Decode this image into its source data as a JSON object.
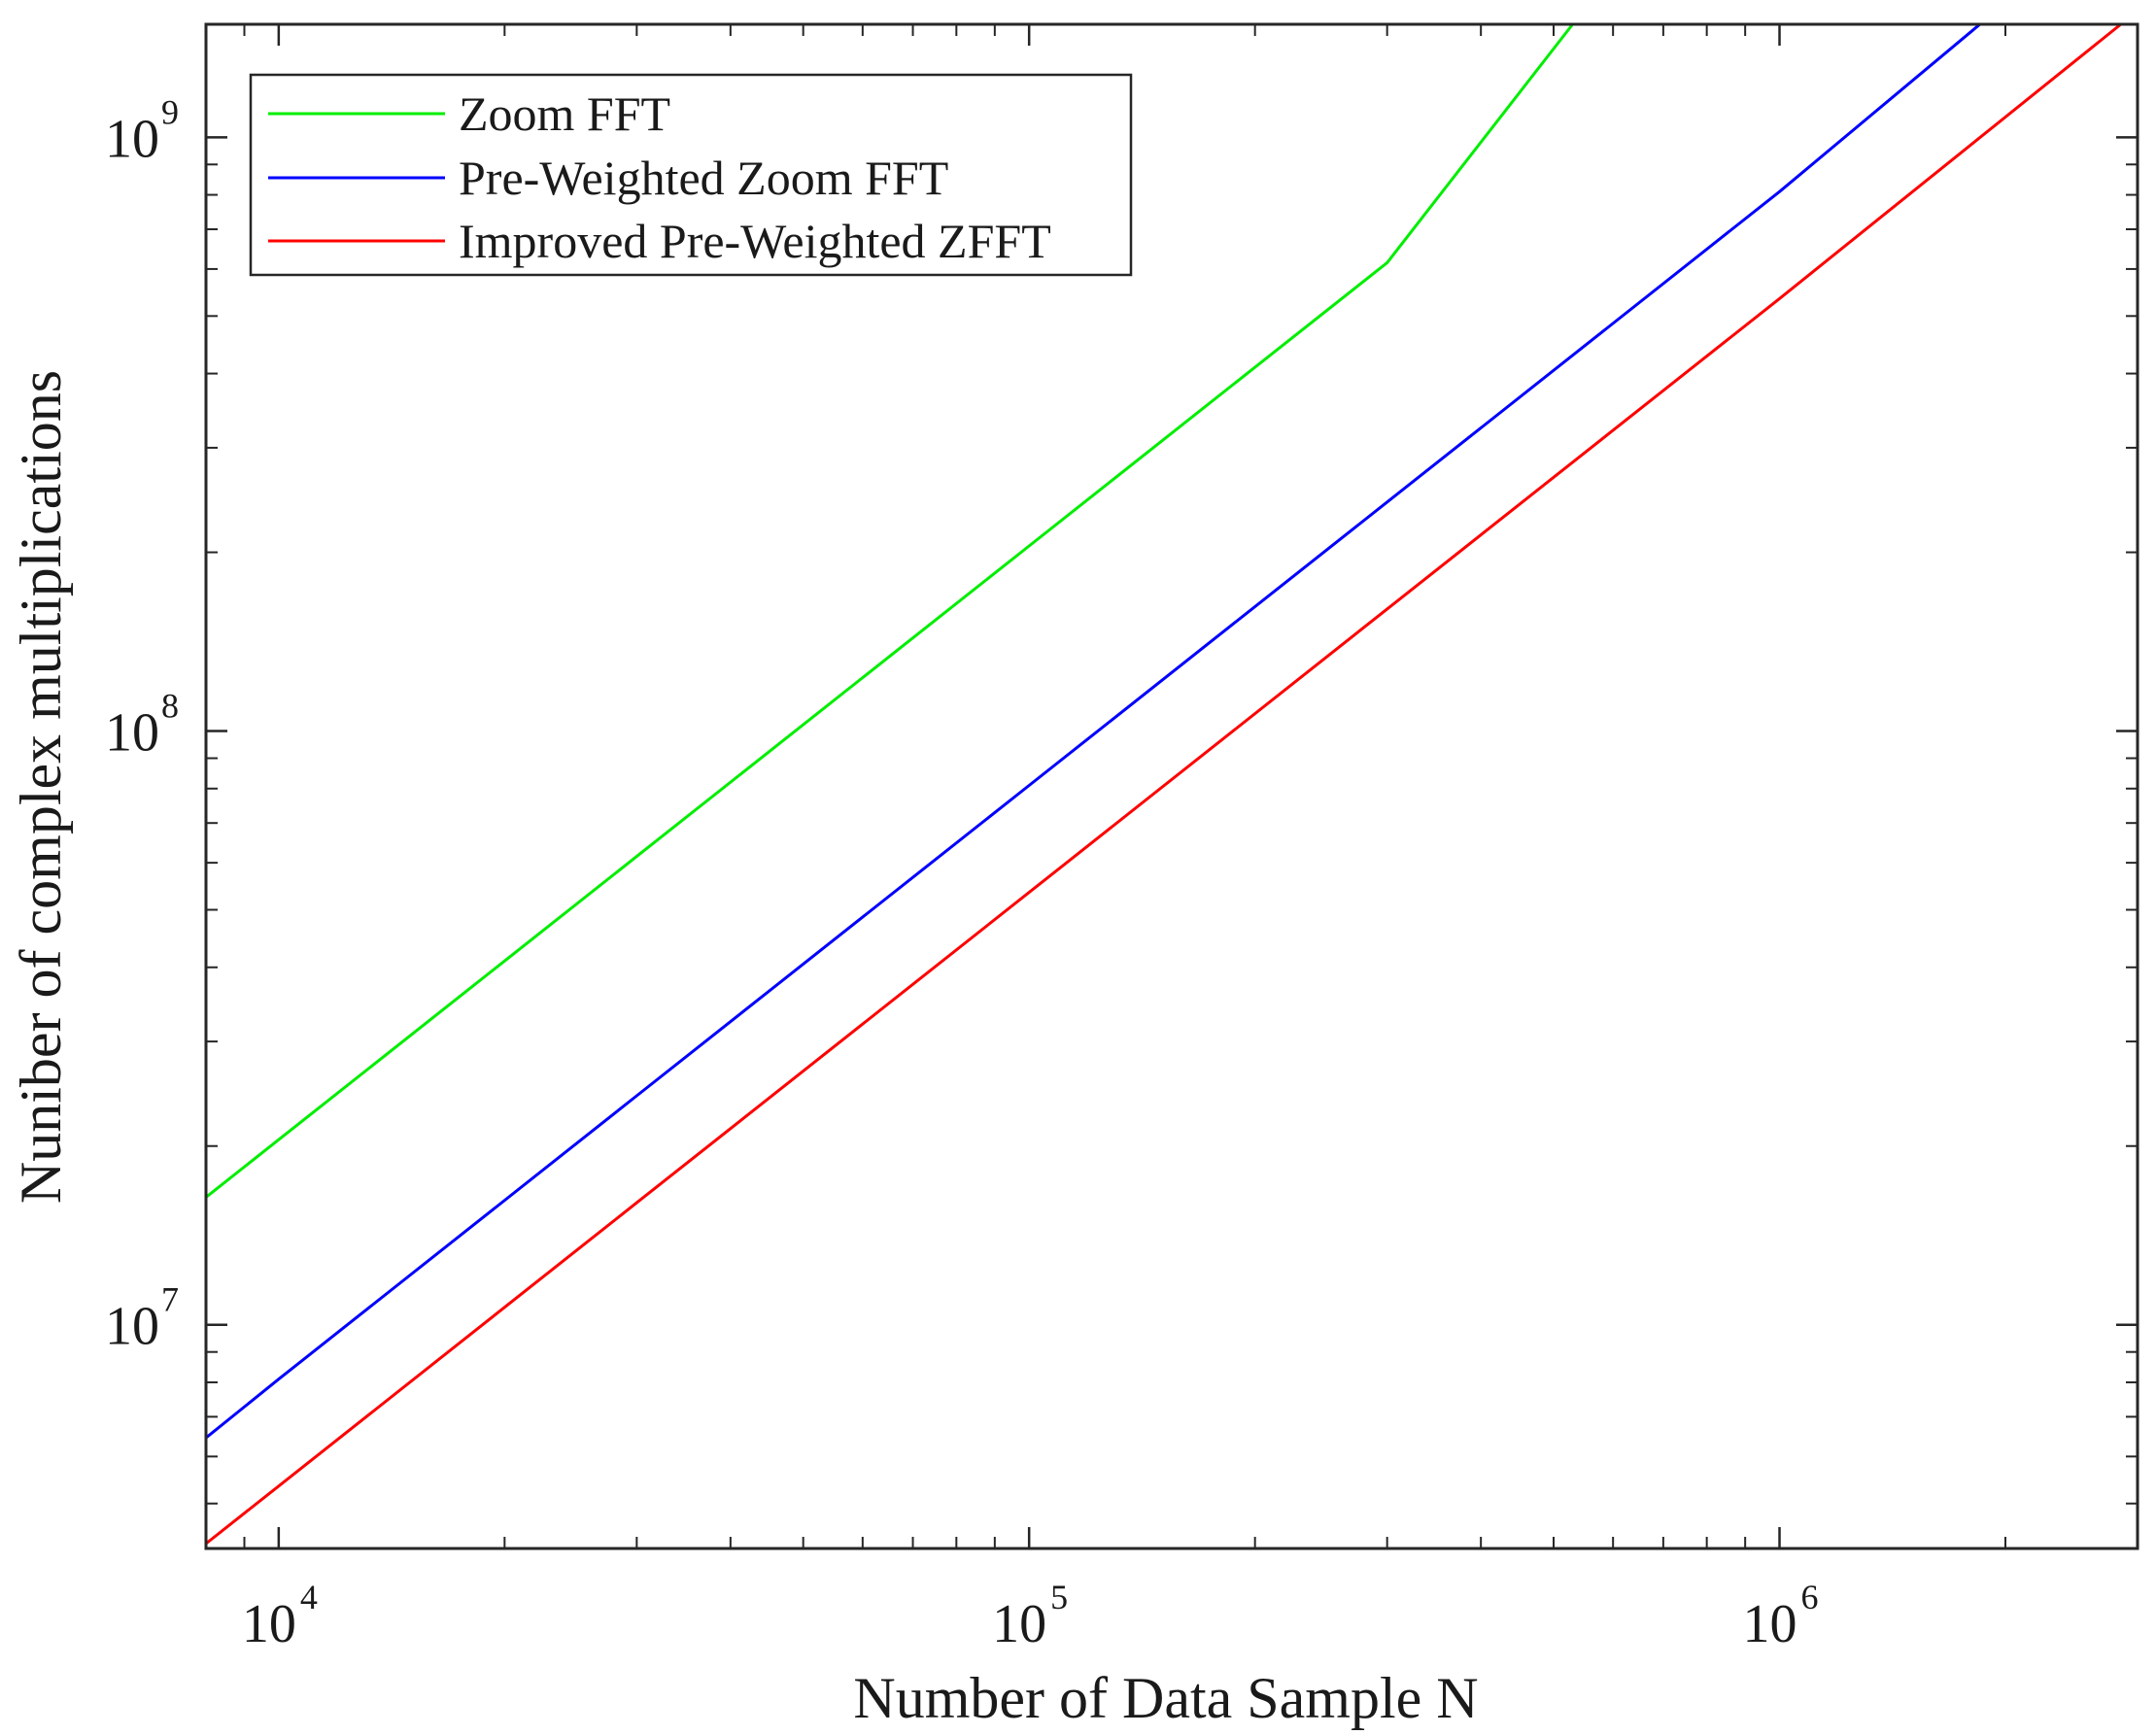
{
  "chart_data": {
    "type": "line",
    "title": "",
    "xlabel": "Number of Data Sample N",
    "ylabel": "Nuniber of complex multiplications",
    "xscale": "log",
    "yscale": "log",
    "xlim": [
      8000,
      3000000
    ],
    "ylim": [
      4200000,
      1550000000
    ],
    "x_ticks": [
      {
        "base": "10",
        "exp": "4",
        "value": 10000
      },
      {
        "base": "10",
        "exp": "5",
        "value": 100000
      },
      {
        "base": "10",
        "exp": "6",
        "value": 1000000
      }
    ],
    "y_ticks": [
      {
        "base": "10",
        "exp": "7",
        "value": 10000000
      },
      {
        "base": "10",
        "exp": "8",
        "value": 100000000
      },
      {
        "base": "10",
        "exp": "9",
        "value": 1000000000
      }
    ],
    "grid": false,
    "legend_position": "top-left",
    "series": [
      {
        "name": "Zoom FFT",
        "color": "#00ee00",
        "x": [
          8000,
          10000,
          30000,
          100000,
          300000,
          530000
        ],
        "y": [
          16400000,
          20500000,
          61500000,
          205000000,
          615000000,
          1550000000
        ]
      },
      {
        "name": "Pre-Weighted Zoom FFT",
        "color": "#0000ff",
        "x": [
          8000,
          10000,
          30000,
          100000,
          300000,
          1000000,
          1850000
        ],
        "y": [
          6450000,
          8100000,
          24300000,
          81000000,
          243000000,
          810000000,
          1550000000
        ]
      },
      {
        "name": "Improved Pre-Weighted ZFFT",
        "color": "#ff0000",
        "x": [
          8000,
          10000,
          30000,
          100000,
          300000,
          1000000,
          2850000
        ],
        "y": [
          4280000,
          5350000,
          16050000,
          53500000,
          160500000,
          535000000,
          1550000000
        ]
      }
    ]
  }
}
